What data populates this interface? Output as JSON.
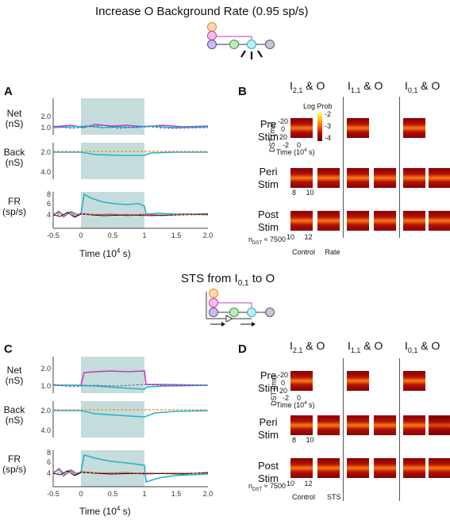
{
  "top": {
    "title": "Increase O Background Rate (0.95 sp/s)",
    "panel_a": "A",
    "panel_b": "B",
    "ylabels": {
      "net_1": "Net",
      "net_2": "(nS)",
      "back_1": "Back",
      "back_2": "(nS)",
      "fr_1": "FR",
      "fr_2": "(sp/s)"
    },
    "net_ticks": [
      "2.0",
      "1.0"
    ],
    "back_ticks": [
      "2.0",
      "4.0"
    ],
    "fr_ticks": [
      "8",
      "6",
      "4"
    ],
    "x_ticks": [
      "-0.5",
      "0",
      "0.5",
      "1",
      "1.5",
      "2.0"
    ],
    "xlabel": "Time (10",
    "xlabel_exp": "4",
    "xlabel_end": " s)",
    "columns": [
      {
        "main": "I",
        "sub": "2,1",
        "rest": " & O"
      },
      {
        "main": "I",
        "sub": "1,1",
        "rest": " & O"
      },
      {
        "main": "I",
        "sub": "0,1",
        "rest": " & O"
      }
    ],
    "rows": [
      {
        "l1": "Pre",
        "l2": "Stim"
      },
      {
        "l1": "Peri",
        "l2": "Stim"
      },
      {
        "l1": "Post",
        "l2": "Stim"
      }
    ],
    "colorbar_title": "Log Prob",
    "colorbar_ticks": [
      "-2",
      "-3",
      "-4"
    ],
    "dst_label": "DST (ms)",
    "dst_ticks": [
      "-20",
      "0",
      "20"
    ],
    "time_ticks": [
      "-2",
      "0"
    ],
    "time_label": "Time (10",
    "peri_ticks": [
      "8",
      "10"
    ],
    "post_ticks": [
      "10",
      "12"
    ],
    "ndst": "n",
    "ndst_sub": "DST",
    "ndst_val": " ≈ 7500",
    "cond_left": "Control",
    "cond_right": "Rate"
  },
  "bottom": {
    "title": "STS from I",
    "title_sub": "0,1",
    "title_end": " to O",
    "panel_c": "C",
    "panel_d": "D",
    "net_ticks": [
      "2.0",
      "1.0"
    ],
    "back_ticks": [
      "2.0",
      "4.0"
    ],
    "fr_ticks": [
      "8",
      "6",
      "4"
    ],
    "x_ticks": [
      "-0.5",
      "0",
      "0.5",
      "1",
      "1.5",
      "2.0"
    ],
    "cond_left": "Control",
    "cond_right": "STS"
  },
  "colors": {
    "stim_shade": "#c5dcdc",
    "cyan": "#1fb5c4",
    "magenta": "#c03cc0",
    "orange": "#f08a1c",
    "purple": "#6050b0",
    "black": "#000000",
    "node_orange": "#fbd9b0",
    "node_pink": "#f5c0e0",
    "node_purple": "#c8c0ec",
    "node_green": "#bfe8c0",
    "node_cyan": "#c0ecf4",
    "node_gray": "#c4c8d4"
  }
}
